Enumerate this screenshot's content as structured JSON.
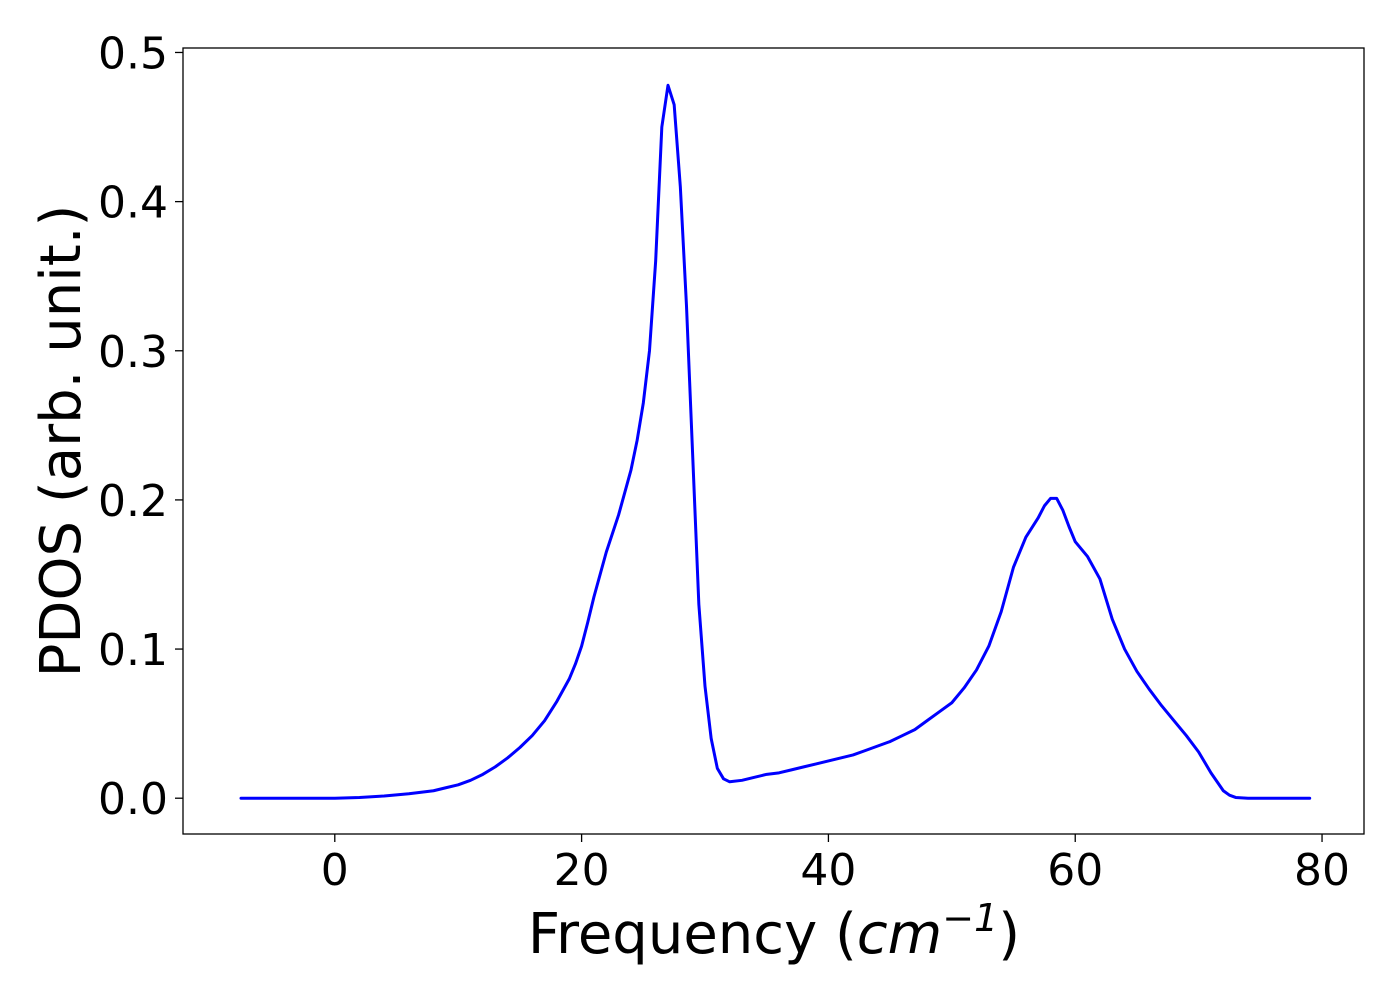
{
  "chart_data": {
    "type": "line",
    "title": "",
    "xlabel": "Frequency (cm⁻¹)",
    "xlabel_parts": {
      "prefix": "Frequency (",
      "unit_base": "cm",
      "unit_exp": "−1",
      "suffix": ")"
    },
    "ylabel": "PDOS (arb. unit.)",
    "xlim": [
      -12.3,
      83.4
    ],
    "ylim": [
      -0.024,
      0.503
    ],
    "xticks": [
      0,
      20,
      40,
      60,
      80
    ],
    "xtick_labels": [
      "0",
      "20",
      "40",
      "60",
      "80"
    ],
    "yticks": [
      0.0,
      0.1,
      0.2,
      0.3,
      0.4,
      0.5
    ],
    "ytick_labels": [
      "0.0",
      "0.1",
      "0.2",
      "0.3",
      "0.4",
      "0.5"
    ],
    "grid": false,
    "legend": "none",
    "series": [
      {
        "color": "#0000ff",
        "x": [
          -7.6,
          -2,
          0,
          2,
          4,
          6,
          8,
          9,
          10,
          11,
          12,
          13,
          14,
          15,
          16,
          17,
          18,
          19,
          19.5,
          20,
          20.5,
          21,
          21.5,
          22,
          23,
          24,
          24.5,
          25,
          25.5,
          26,
          26.5,
          27,
          27.5,
          28,
          28.5,
          29,
          29.5,
          30,
          30.5,
          31,
          31.5,
          32,
          33,
          34,
          35,
          36,
          37,
          38,
          39,
          40,
          41,
          42,
          43,
          44,
          45,
          46,
          47,
          48,
          49,
          50,
          51,
          52,
          53,
          54,
          55,
          56,
          57,
          57.5,
          58,
          58.5,
          59,
          59.5,
          60,
          61,
          62,
          63,
          64,
          65,
          66,
          67,
          68,
          69,
          70,
          71,
          72,
          72.5,
          73,
          74,
          76,
          79
        ],
        "y": [
          0.0,
          0.0,
          0.0,
          0.0005,
          0.0015,
          0.003,
          0.005,
          0.007,
          0.009,
          0.012,
          0.016,
          0.021,
          0.027,
          0.034,
          0.042,
          0.052,
          0.065,
          0.08,
          0.09,
          0.102,
          0.118,
          0.135,
          0.15,
          0.165,
          0.19,
          0.22,
          0.24,
          0.265,
          0.3,
          0.36,
          0.45,
          0.478,
          0.465,
          0.41,
          0.33,
          0.23,
          0.13,
          0.075,
          0.04,
          0.02,
          0.013,
          0.011,
          0.012,
          0.014,
          0.016,
          0.017,
          0.019,
          0.021,
          0.023,
          0.025,
          0.027,
          0.029,
          0.032,
          0.035,
          0.038,
          0.042,
          0.046,
          0.052,
          0.058,
          0.064,
          0.074,
          0.086,
          0.102,
          0.125,
          0.155,
          0.175,
          0.188,
          0.196,
          0.201,
          0.201,
          0.193,
          0.182,
          0.172,
          0.162,
          0.147,
          0.12,
          0.1,
          0.085,
          0.073,
          0.062,
          0.052,
          0.042,
          0.031,
          0.017,
          0.005,
          0.002,
          0.0005,
          0.0,
          0.0,
          0.0
        ]
      }
    ]
  }
}
